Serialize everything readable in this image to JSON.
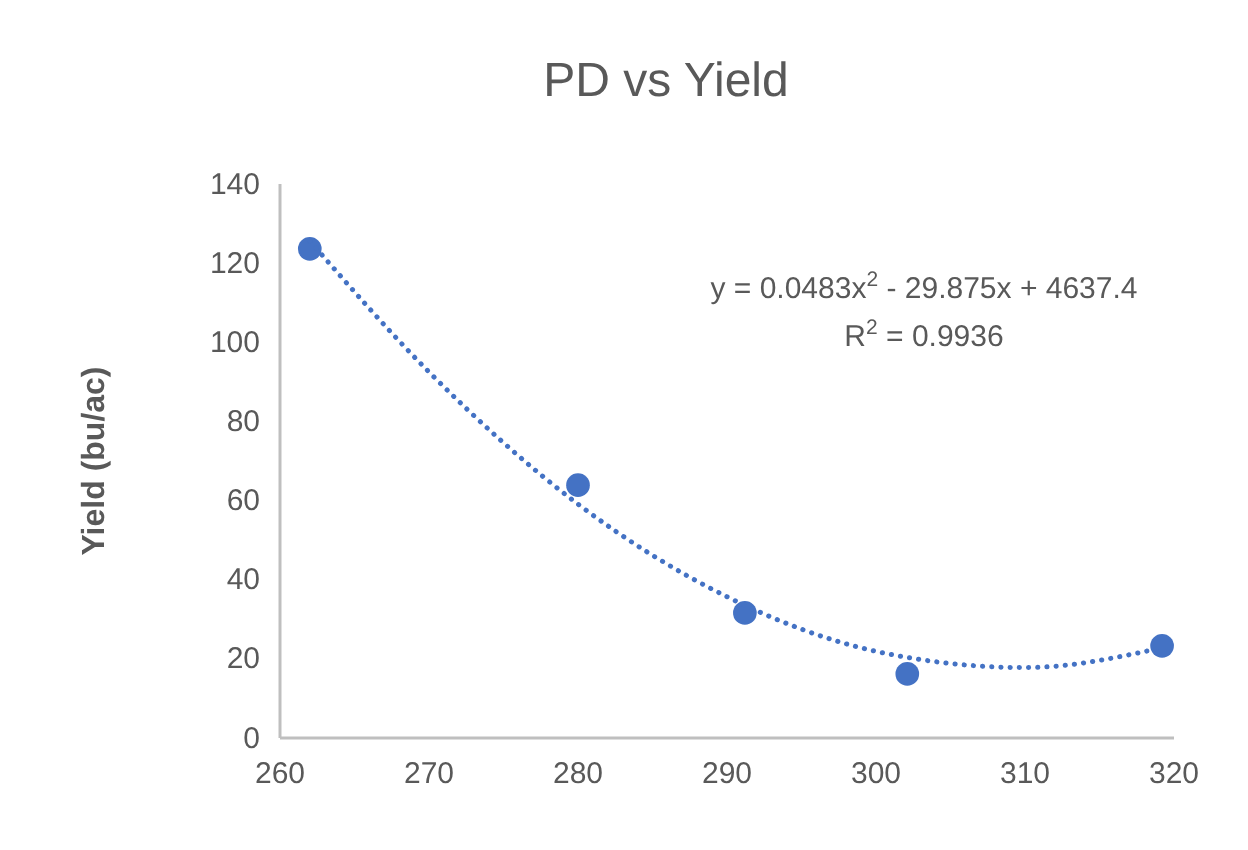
{
  "chart_data": {
    "type": "scatter",
    "title": "PD vs Yield",
    "ylabel": "Yield (bu/ac)",
    "xlim": [
      260,
      320
    ],
    "xticks": [
      260,
      270,
      280,
      290,
      300,
      310,
      320
    ],
    "ylim": [
      0,
      140
    ],
    "yticks": [
      0,
      20,
      40,
      60,
      80,
      100,
      120,
      140
    ],
    "grid": false,
    "marker": "circle",
    "annotations": [
      "y = 0.0483x$^{2}$ - 29.875x + 4637.4",
      "R$^{2}$ = 0.9936"
    ],
    "series": [
      {
        "color": "#4472c4",
        "x": [
          262,
          280,
          291.2,
          302.1,
          319.2
        ],
        "values": [
          123.6,
          63.9,
          31.6,
          16.2,
          23.3
        ]
      },
      {
        "type": "line",
        "color": "#4472c4",
        "line_style": "dotted",
        "marker": "none",
        "x": [
          262,
          270,
          280,
          290,
          300,
          310,
          319.2
        ],
        "values": [
          125.6,
          92.5,
          59.1,
          35.7,
          21.9,
          17.8,
          22.8
        ]
      }
    ]
  }
}
